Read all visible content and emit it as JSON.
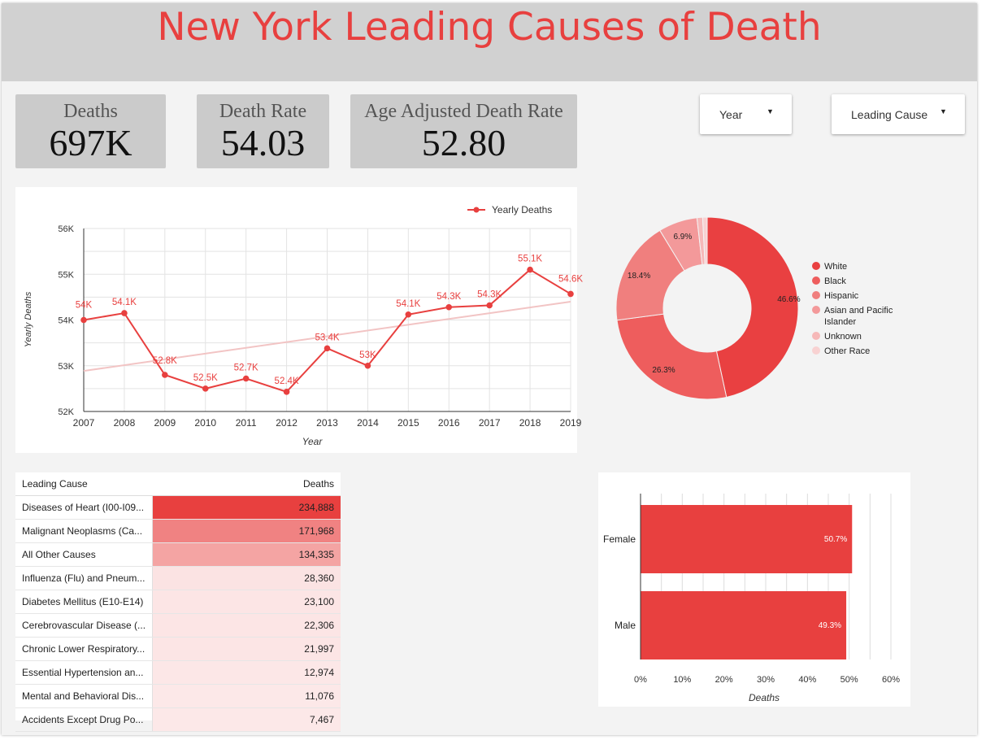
{
  "header": {
    "title": "New York Leading Causes of Death"
  },
  "scorecards": [
    {
      "label": "Deaths",
      "value": "697K"
    },
    {
      "label": "Death Rate",
      "value": "54.03"
    },
    {
      "label": "Age Adjusted Death Rate",
      "value": "52.80"
    }
  ],
  "filters": {
    "year_label": "Year",
    "cause_label": "Leading Cause"
  },
  "colors": {
    "accent": "#e8403f",
    "trend": "#f2c4c4",
    "pie": [
      "#e94041",
      "#ee5d5d",
      "#f07f7e",
      "#f3999a",
      "#f6b8b8",
      "#f8d2d2"
    ],
    "heat_high": "#e8403f",
    "heat_low": "#fce4e4"
  },
  "chart_data": [
    {
      "type": "line",
      "title": "",
      "xlabel": "Year",
      "ylabel": "Yearly Deaths",
      "legend_position": "top-right",
      "grid": true,
      "x": [
        2007,
        2008,
        2009,
        2010,
        2011,
        2012,
        2013,
        2014,
        2015,
        2016,
        2017,
        2018,
        2019
      ],
      "ylim": [
        52000,
        56000
      ],
      "yticks": [
        "52K",
        "53K",
        "54K",
        "55K",
        "56K"
      ],
      "series": [
        {
          "name": "Yearly Deaths",
          "values": [
            54000,
            54150,
            52800,
            52500,
            52720,
            52430,
            53380,
            53000,
            54120,
            54280,
            54320,
            55100,
            54570
          ],
          "labels": [
            "54K",
            "54.1K",
            "52.8K",
            "52.5K",
            "52.7K",
            "52.4K",
            "53.4K",
            "53K",
            "54.1K",
            "54.3K",
            "54.3K",
            "55.1K",
            "54.6K"
          ]
        }
      ],
      "trendline": true
    },
    {
      "type": "pie",
      "donut": true,
      "legend_position": "right",
      "categories": [
        "White",
        "Black",
        "Hispanic",
        "Asian and Pacific Islander",
        "Unknown",
        "Other Race"
      ],
      "values": [
        46.6,
        26.3,
        18.4,
        6.9,
        1.0,
        0.8
      ],
      "labels": [
        "46.6%",
        "26.3%",
        "18.4%",
        "6.9%",
        "",
        ""
      ]
    },
    {
      "type": "table",
      "columns": [
        "Leading Cause",
        "Deaths"
      ],
      "rows": [
        {
          "cause": "Diseases of Heart (I00-I09...",
          "deaths": "234,888",
          "value": 234888
        },
        {
          "cause": "Malignant Neoplasms (Ca...",
          "deaths": "171,968",
          "value": 171968
        },
        {
          "cause": "All Other Causes",
          "deaths": "134,335",
          "value": 134335
        },
        {
          "cause": "Influenza (Flu) and Pneum...",
          "deaths": "28,360",
          "value": 28360
        },
        {
          "cause": "Diabetes Mellitus (E10-E14)",
          "deaths": "23,100",
          "value": 23100
        },
        {
          "cause": "Cerebrovascular Disease (...",
          "deaths": "22,306",
          "value": 22306
        },
        {
          "cause": "Chronic Lower Respiratory...",
          "deaths": "21,997",
          "value": 21997
        },
        {
          "cause": "Essential Hypertension an...",
          "deaths": "12,974",
          "value": 12974
        },
        {
          "cause": "Mental and Behavioral Dis...",
          "deaths": "11,076",
          "value": 11076
        },
        {
          "cause": "Accidents Except Drug Po...",
          "deaths": "7,467",
          "value": 7467
        }
      ]
    },
    {
      "type": "bar",
      "orientation": "horizontal",
      "xlabel": "Deaths",
      "ylabel": "",
      "categories": [
        "Female",
        "Male"
      ],
      "values": [
        50.7,
        49.3
      ],
      "labels": [
        "50.7%",
        "49.3%"
      ],
      "xlim": [
        0,
        60
      ],
      "xticks": [
        "0%",
        "10%",
        "20%",
        "30%",
        "40%",
        "50%",
        "60%"
      ]
    }
  ]
}
